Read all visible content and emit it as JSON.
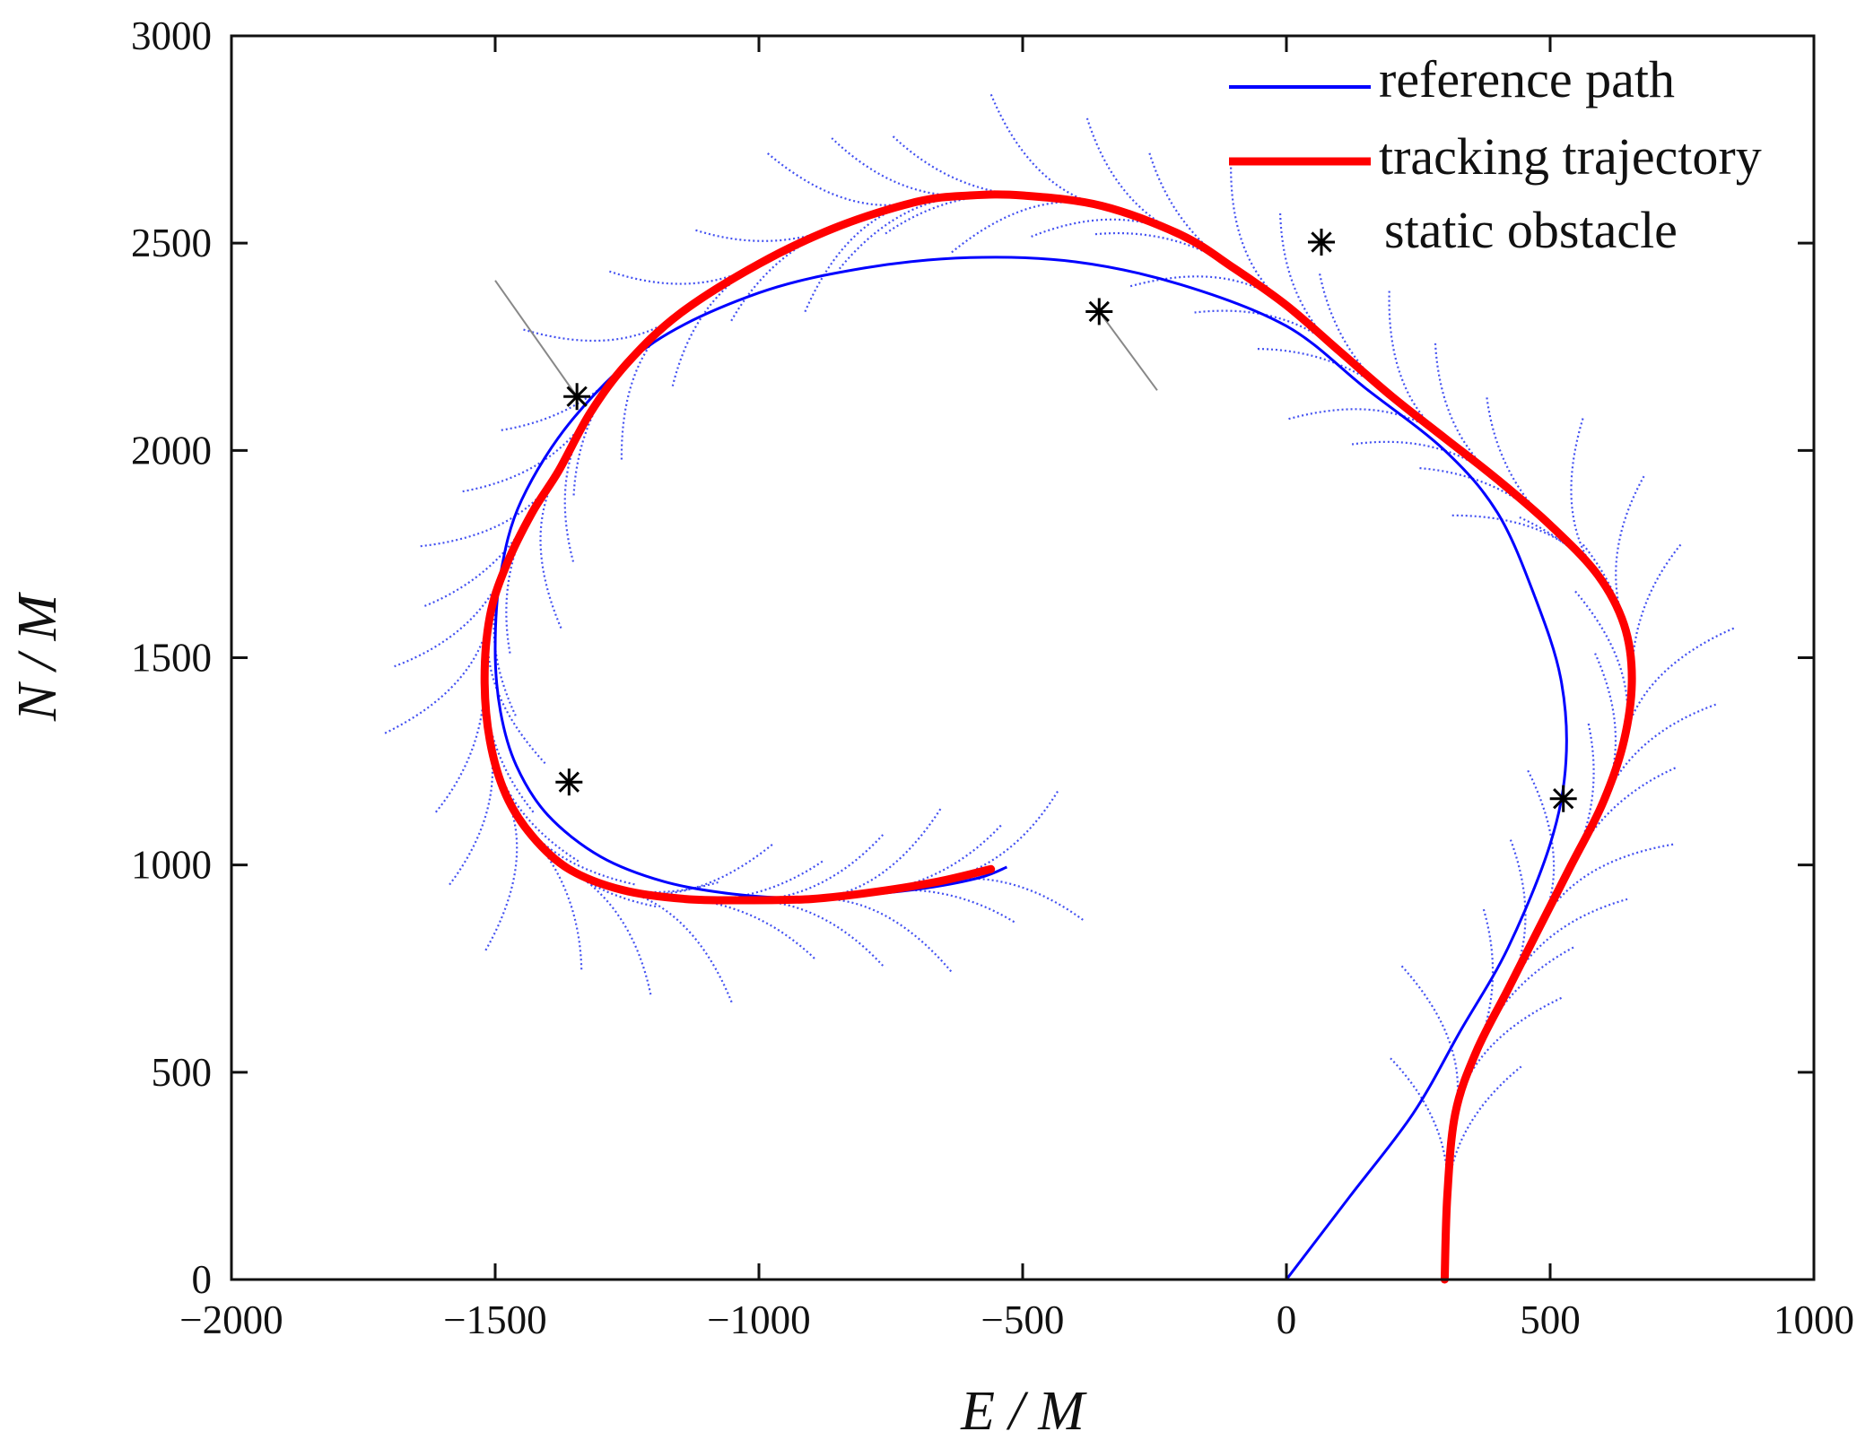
{
  "chart_data": {
    "type": "line",
    "title": "",
    "xlabel": "E / M",
    "ylabel": "N / M",
    "xlim": [
      -2000,
      1000
    ],
    "ylim": [
      0,
      3000
    ],
    "xticks": [
      -2000,
      -1500,
      -1000,
      -500,
      0,
      500,
      1000
    ],
    "yticks": [
      0,
      500,
      1000,
      1500,
      2000,
      2500,
      3000
    ],
    "xtick_labels": [
      "−2000",
      "−1500",
      "−1000",
      "−500",
      "0",
      "500",
      "1000"
    ],
    "ytick_labels": [
      "0",
      "500",
      "1000",
      "1500",
      "2000",
      "2500",
      "3000"
    ],
    "grid": false,
    "legend_position": "top-right",
    "colors": {
      "reference": "#0000ff",
      "tracking": "#ff0000",
      "predicted": "#2233ee",
      "obstacle": "#000000",
      "obstacle_ray": "#888888",
      "axis": "#111111"
    },
    "series": [
      {
        "name": "reference path",
        "style": "thin-line",
        "x": [
          0,
          120,
          240,
          330,
          420,
          500,
          530,
          520,
          470,
          400,
          300,
          150,
          0,
          -200,
          -400,
          -600,
          -800,
          -1000,
          -1200,
          -1350,
          -1450,
          -1490,
          -1500,
          -1490,
          -1460,
          -1400,
          -1300,
          -1180,
          -1050,
          -920,
          -800,
          -680,
          -580,
          -530
        ],
        "y": [
          0,
          200,
          400,
          600,
          800,
          1050,
          1250,
          1450,
          1650,
          1850,
          2000,
          2150,
          2300,
          2400,
          2455,
          2465,
          2440,
          2380,
          2260,
          2080,
          1880,
          1700,
          1520,
          1370,
          1240,
          1120,
          1020,
          960,
          930,
          920,
          928,
          945,
          970,
          995
        ]
      },
      {
        "name": "tracking trajectory",
        "style": "thick-line",
        "x": [
          300,
          305,
          320,
          360,
          420,
          480,
          540,
          600,
          640,
          655,
          640,
          590,
          500,
          400,
          300,
          200,
          100,
          0,
          -100,
          -200,
          -350,
          -500,
          -600,
          -700,
          -850,
          -1000,
          -1150,
          -1250,
          -1320,
          -1380,
          -1430,
          -1480,
          -1510,
          -1520,
          -1510,
          -1480,
          -1430,
          -1360,
          -1260,
          -1140,
          -1020,
          -900,
          -780,
          -660,
          -560
        ],
        "y": [
          0,
          200,
          400,
          550,
          700,
          850,
          1000,
          1150,
          1300,
          1450,
          1580,
          1700,
          1820,
          1930,
          2030,
          2130,
          2240,
          2350,
          2440,
          2520,
          2590,
          2615,
          2615,
          2600,
          2540,
          2450,
          2330,
          2210,
          2090,
          1950,
          1850,
          1720,
          1600,
          1450,
          1300,
          1170,
          1070,
          990,
          940,
          918,
          915,
          918,
          935,
          960,
          990
        ]
      }
    ],
    "static_obstacles": {
      "name": "static obstacle",
      "x": [
        -1345,
        -355,
        -1360,
        525
      ],
      "y": [
        2130,
        2335,
        1200,
        1160
      ]
    },
    "predicted_horizon_note": "dotted blue fan of predicted trajectories drawn along the tracking trajectory",
    "obstacle_rays": [
      {
        "x": [
          -1345,
          -1500
        ],
        "y": [
          2130,
          2410
        ]
      },
      {
        "x": [
          -355,
          -245
        ],
        "y": [
          2335,
          2145
        ]
      }
    ]
  }
}
